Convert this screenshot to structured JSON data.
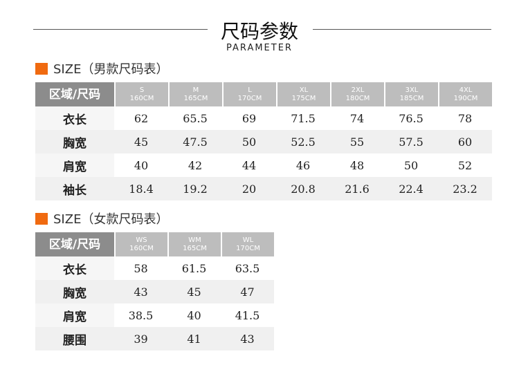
{
  "title": "尺码参数",
  "subtitle": "PARAMETER",
  "accent": "#f06a10",
  "men": {
    "heading": "SIZE（男款尺码表）",
    "corner": "区域/尺码",
    "sizes": [
      {
        "name": "S",
        "height": "160CM"
      },
      {
        "name": "M",
        "height": "165CM"
      },
      {
        "name": "L",
        "height": "170CM"
      },
      {
        "name": "XL",
        "height": "175CM"
      },
      {
        "name": "2XL",
        "height": "180CM"
      },
      {
        "name": "3XL",
        "height": "185CM"
      },
      {
        "name": "4XL",
        "height": "190CM"
      }
    ],
    "rows": [
      {
        "label": "衣长",
        "values": [
          "62",
          "65.5",
          "69",
          "71.5",
          "74",
          "76.5",
          "78"
        ]
      },
      {
        "label": "胸宽",
        "values": [
          "45",
          "47.5",
          "50",
          "52.5",
          "55",
          "57.5",
          "60"
        ]
      },
      {
        "label": "肩宽",
        "values": [
          "40",
          "42",
          "44",
          "46",
          "48",
          "50",
          "52"
        ]
      },
      {
        "label": "袖长",
        "values": [
          "18.4",
          "19.2",
          "20",
          "20.8",
          "21.6",
          "22.4",
          "23.2"
        ]
      }
    ]
  },
  "women": {
    "heading": "SIZE（女款尺码表）",
    "corner": "区域/尺码",
    "sizes": [
      {
        "name": "WS",
        "height": "160CM"
      },
      {
        "name": "WM",
        "height": "165CM"
      },
      {
        "name": "WL",
        "height": "170CM"
      }
    ],
    "rows": [
      {
        "label": "衣长",
        "values": [
          "58",
          "61.5",
          "63.5"
        ]
      },
      {
        "label": "胸宽",
        "values": [
          "43",
          "45",
          "47"
        ]
      },
      {
        "label": "肩宽",
        "values": [
          "38.5",
          "40",
          "41.5"
        ]
      },
      {
        "label": "腰围",
        "values": [
          "39",
          "41",
          "43"
        ]
      }
    ]
  }
}
